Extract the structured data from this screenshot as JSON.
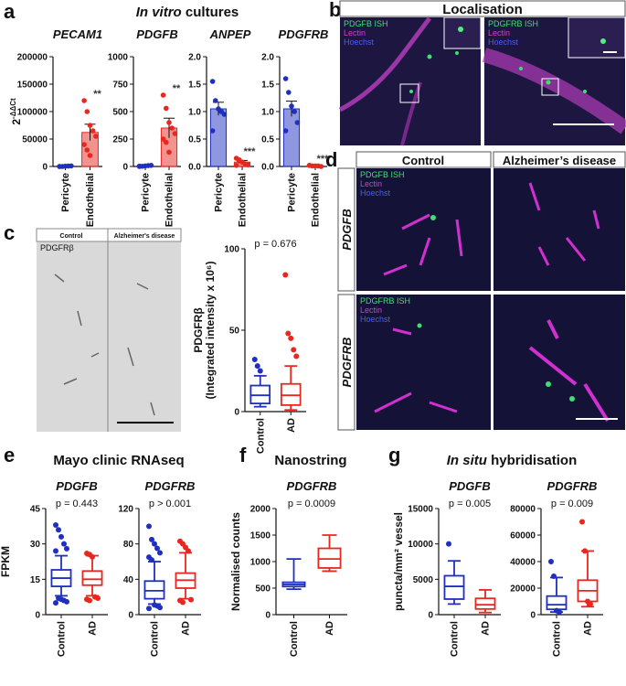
{
  "figure": {
    "letters": [
      "a",
      "b",
      "c",
      "d",
      "e",
      "f",
      "g"
    ],
    "in_vitro": [
      "In vitro",
      "cultures"
    ],
    "localisation": "Localisation",
    "mayo": "Mayo clinic RNAseq",
    "nanostring": "Nanostring",
    "in_situ": [
      "In situ",
      "hybridisation"
    ],
    "b_left": [
      "PDGFB ISH",
      "Lectin",
      "Hoechst"
    ],
    "b_right": [
      "PDGFRB ISH",
      "Lectin",
      "Hoechst"
    ],
    "c_image": [
      "Control",
      "Alzheimer's disease",
      "PDGFRβ"
    ],
    "d_columns": [
      "Control",
      "Alzheimer’s disease"
    ],
    "d_rows": [
      "PDGFB",
      "PDGFRB"
    ],
    "d_top": [
      "PDGFB ISH",
      "Lectin",
      "Hoechst"
    ],
    "d_bottom": [
      "PDGFRB ISH",
      "Lectin",
      "Hoechst"
    ]
  },
  "chart_data": [
    {
      "type": "bar",
      "title": "PECAM1",
      "ylabel": {
        "base": "2",
        "sup": "-ΔΔCt"
      },
      "categories": [
        "Pericyte",
        "Endothelial"
      ],
      "colors": [
        "#1f2fbf",
        "#e8271f"
      ],
      "values": [
        500,
        62000
      ],
      "errors": [
        300,
        15000
      ],
      "points": [
        [
          0,
          0,
          500,
          800,
          1000,
          0
        ],
        [
          120000,
          100000,
          75000,
          65000,
          55000,
          40000,
          30000,
          20000
        ]
      ],
      "annotation": "**",
      "ylim": [
        0,
        200000
      ],
      "yticks": [
        0,
        50000,
        100000,
        150000,
        200000
      ]
    },
    {
      "type": "bar",
      "title": "PDGFB",
      "categories": [
        "Pericyte",
        "Endothelial"
      ],
      "colors": [
        "#1f2fbf",
        "#e8271f"
      ],
      "values": [
        5,
        350
      ],
      "errors": [
        3,
        90
      ],
      "points": [
        [
          0,
          2,
          5,
          8,
          10,
          3
        ],
        [
          650,
          530,
          400,
          350,
          300,
          250,
          220,
          130
        ]
      ],
      "annotation": "**",
      "ylim": [
        0,
        1000
      ],
      "yticks": [
        0,
        250,
        500,
        750,
        1000
      ]
    },
    {
      "type": "bar",
      "title": "ANPEP",
      "categories": [
        "Pericyte",
        "Endothelial"
      ],
      "colors": [
        "#1f2fbf",
        "#e8271f"
      ],
      "values": [
        1.05,
        0.08
      ],
      "errors": [
        0.12,
        0.03
      ],
      "points": [
        [
          1.55,
          1.2,
          1.05,
          1.0,
          0.95,
          0.65
        ],
        [
          0.15,
          0.1,
          0.08,
          0.05,
          0.03,
          0.02,
          0.12
        ]
      ],
      "annotation": "***",
      "ylim": [
        0,
        2
      ],
      "yticks": [
        {
          "value": 0,
          "label": "0.0"
        },
        0.5,
        {
          "value": 1,
          "label": "1.0"
        },
        1.5,
        {
          "value": 2,
          "label": "2.0"
        }
      ]
    },
    {
      "type": "bar",
      "title": "PDGFRB",
      "categories": [
        "Pericyte",
        "Endothelial"
      ],
      "colors": [
        "#1f2fbf",
        "#e8271f"
      ],
      "values": [
        1.05,
        0.01
      ],
      "errors": [
        0.14,
        0.005
      ],
      "points": [
        [
          1.6,
          1.35,
          1.1,
          1.0,
          0.8,
          0.65
        ],
        [
          0.02,
          0.01,
          0.01,
          0.01,
          0,
          0.02
        ]
      ],
      "annotation": "***",
      "ylim": [
        0,
        2
      ],
      "yticks": [
        {
          "value": 0,
          "label": "0.0"
        },
        0.5,
        {
          "value": 1,
          "label": "1.0"
        },
        1.5,
        {
          "value": 2,
          "label": "2.0"
        }
      ]
    },
    {
      "type": "box",
      "ylabel": [
        "PDGFRβ",
        "(Integrated intensity x 10⁶)"
      ],
      "annotation": "p = 0.676",
      "categories": [
        "Control",
        "AD"
      ],
      "colors": [
        "#1f2fbf",
        "#e8271f"
      ],
      "boxes": [
        {
          "min": 3,
          "q1": 5,
          "median": 10,
          "q3": 16,
          "max": 22,
          "outliers": [
            32,
            28,
            25
          ]
        },
        {
          "min": 1,
          "q1": 4,
          "median": 10,
          "q3": 17,
          "max": 28,
          "outliers": [
            84,
            48,
            45,
            38,
            34
          ]
        }
      ],
      "ylim": [
        0,
        100
      ],
      "yticks": [
        0,
        50,
        100
      ]
    },
    {
      "type": "box",
      "title": "PDGFB",
      "ylabel": [
        "FPKM"
      ],
      "annotation": "p = 0.443",
      "categories": [
        "Control",
        "AD"
      ],
      "colors": [
        "#1f2fbf",
        "#e8271f"
      ],
      "boxes": [
        {
          "min": 8,
          "q1": 12,
          "median": 15.5,
          "q3": 19,
          "max": 25,
          "outliers": [
            38,
            36,
            33,
            30,
            28,
            27,
            7,
            6.5,
            6,
            5.5,
            5
          ]
        },
        {
          "min": 8,
          "q1": 12.5,
          "median": 15,
          "q3": 18.5,
          "max": 25,
          "outliers": [
            26,
            25.5,
            24.5,
            7.5,
            7,
            6.5,
            6
          ]
        }
      ],
      "ylim": [
        0,
        45
      ],
      "yticks": [
        0,
        15,
        30,
        45
      ]
    },
    {
      "type": "box",
      "title": "PDGFRB",
      "annotation": "p > 0.001",
      "categories": [
        "Control",
        "AD"
      ],
      "colors": [
        "#1f2fbf",
        "#e8271f"
      ],
      "boxes": [
        {
          "min": 12,
          "q1": 18,
          "median": 27,
          "q3": 38,
          "max": 60,
          "outliers": [
            100,
            85,
            80,
            75,
            70,
            65,
            62,
            11,
            10,
            8,
            7
          ]
        },
        {
          "min": 18,
          "q1": 30,
          "median": 39,
          "q3": 47,
          "max": 70,
          "outliers": [
            83,
            80,
            76,
            72,
            17,
            16,
            14
          ]
        }
      ],
      "ylim": [
        0,
        120
      ],
      "yticks": [
        0,
        40,
        80,
        120
      ]
    },
    {
      "type": "box",
      "title": "PDGFRB",
      "ylabel": [
        "Normalised counts"
      ],
      "annotation": "p = 0.0009",
      "categories": [
        "Control",
        "AD"
      ],
      "colors": [
        "#1f2fbf",
        "#e8271f"
      ],
      "boxes": [
        {
          "min": 480,
          "q1": 530,
          "median": 570,
          "q3": 610,
          "max": 1050,
          "outliers": []
        },
        {
          "min": 820,
          "q1": 880,
          "median": 1050,
          "q3": 1250,
          "max": 1500,
          "outliers": []
        }
      ],
      "ylim": [
        0,
        2000
      ],
      "yticks": [
        0,
        500,
        1000,
        1500,
        2000
      ]
    },
    {
      "type": "box",
      "title": "PDGFB",
      "ylabel": [
        "puncta/mm² vessel"
      ],
      "annotation": "p = 0.005",
      "categories": [
        "Control",
        "AD"
      ],
      "colors": [
        "#1f2fbf",
        "#e8271f"
      ],
      "boxes": [
        {
          "min": 1500,
          "q1": 2200,
          "median": 4000,
          "q3": 5500,
          "max": 7600,
          "outliers": [
            10000
          ]
        },
        {
          "min": 300,
          "q1": 800,
          "median": 1400,
          "q3": 2300,
          "max": 3500,
          "outliers": []
        }
      ],
      "ylim": [
        0,
        15000
      ],
      "yticks": [
        0,
        5000,
        10000,
        15000
      ]
    },
    {
      "type": "box",
      "title": "PDGFRB",
      "annotation": "p = 0.009",
      "categories": [
        "Control",
        "AD"
      ],
      "colors": [
        "#1f2fbf",
        "#e8271f"
      ],
      "boxes": [
        {
          "min": 2000,
          "q1": 4000,
          "median": 7500,
          "q3": 14000,
          "max": 28000,
          "outliers": [
            40000,
            29000,
            3000,
            2000
          ]
        },
        {
          "min": 6000,
          "q1": 10000,
          "median": 18000,
          "q3": 26000,
          "max": 48000,
          "outliers": [
            70000,
            48000,
            10000,
            8000
          ]
        }
      ],
      "ylim": [
        0,
        80000
      ],
      "yticks": [
        0,
        20000,
        40000,
        60000,
        80000
      ]
    }
  ]
}
